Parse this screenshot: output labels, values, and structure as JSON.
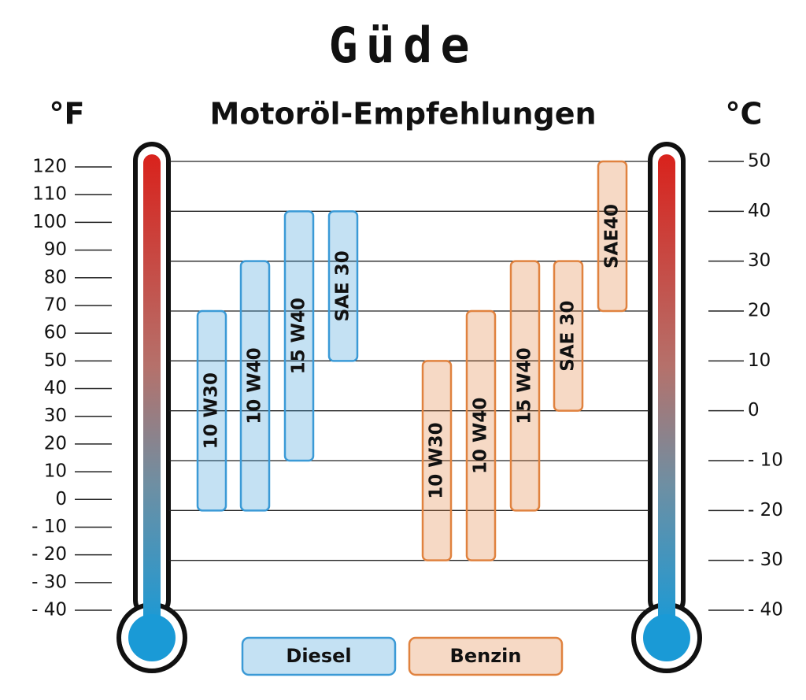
{
  "logo": "Güde",
  "chart_data": {
    "type": "range-bar",
    "title": "Motoröl-Empfehlungen",
    "y_unit": "°C",
    "y2_unit": "°F",
    "ylim": [
      -40,
      50
    ],
    "yticks": [
      {
        "value": -40,
        "label": "- 40"
      },
      {
        "value": -30,
        "label": "- 30"
      },
      {
        "value": -20,
        "label": "- 20"
      },
      {
        "value": -10,
        "label": "- 10"
      },
      0,
      10,
      20,
      30,
      40,
      50
    ],
    "y2lim": [
      -40,
      122
    ],
    "y2ticks": [
      {
        "value": -40,
        "label": "- 40"
      },
      {
        "value": -30,
        "label": "- 30"
      },
      {
        "value": -20,
        "label": "- 20"
      },
      {
        "value": -10,
        "label": "- 10"
      },
      0,
      10,
      20,
      30,
      40,
      50,
      60,
      70,
      80,
      90,
      100,
      110,
      120
    ],
    "grid": true,
    "series": [
      {
        "name": "Diesel",
        "color": "#3b9ad6",
        "bars": [
          {
            "label": "10 W30",
            "low": -20,
            "high": 20
          },
          {
            "label": "10 W40",
            "low": -20,
            "high": 30
          },
          {
            "label": "15 W40",
            "low": -10,
            "high": 40
          },
          {
            "label": "SAE 30",
            "low": 10,
            "high": 40
          }
        ]
      },
      {
        "name": "Benzin",
        "color": "#e0823f",
        "bars": [
          {
            "label": "10 W30",
            "low": -30,
            "high": 10
          },
          {
            "label": "10 W40",
            "low": -30,
            "high": 20
          },
          {
            "label": "15 W40",
            "low": -20,
            "high": 30
          },
          {
            "label": "SAE 30",
            "low": 0,
            "high": 30
          },
          {
            "label": "SAE40",
            "low": 20,
            "high": 50
          }
        ]
      }
    ]
  }
}
